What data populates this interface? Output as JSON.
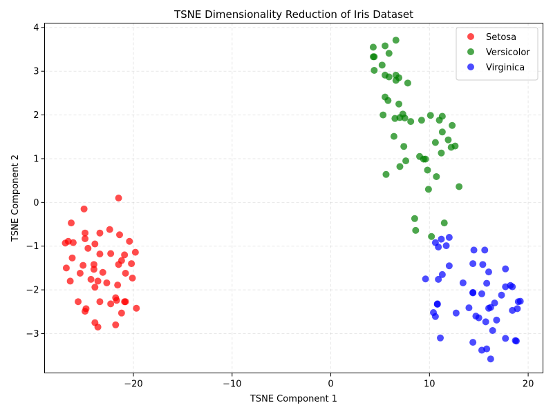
{
  "chart_data": {
    "type": "scatter",
    "title": "TSNE Dimensionality Reduction of Iris Dataset",
    "xlabel": "TSNE Component 1",
    "ylabel": "TSNE Component 2",
    "xlim": [
      -29,
      21.5
    ],
    "ylim": [
      -3.9,
      4.1
    ],
    "xticks": [
      -20,
      -10,
      0,
      10,
      20
    ],
    "yticks": [
      -3,
      -2,
      -1,
      0,
      1,
      2,
      3,
      4
    ],
    "grid": true,
    "legend_position": "top-right",
    "series": [
      {
        "name": "Setosa",
        "color": "#ff0000",
        "points": [
          [
            -21.5,
            0.1
          ],
          [
            -25.0,
            -0.15
          ],
          [
            -26.3,
            -0.47
          ],
          [
            -24.9,
            -0.7
          ],
          [
            -23.4,
            -0.7
          ],
          [
            -22.4,
            -0.62
          ],
          [
            -21.4,
            -0.74
          ],
          [
            -20.4,
            -0.89
          ],
          [
            -26.9,
            -0.93
          ],
          [
            -26.6,
            -0.89
          ],
          [
            -26.1,
            -0.92
          ],
          [
            -24.9,
            -0.83
          ],
          [
            -23.9,
            -0.95
          ],
          [
            -24.6,
            -1.05
          ],
          [
            -23.4,
            -1.18
          ],
          [
            -22.3,
            -1.17
          ],
          [
            -20.9,
            -1.2
          ],
          [
            -19.8,
            -1.14
          ],
          [
            -26.2,
            -1.27
          ],
          [
            -25.1,
            -1.44
          ],
          [
            -26.8,
            -1.5
          ],
          [
            -24.0,
            -1.42
          ],
          [
            -21.5,
            -1.42
          ],
          [
            -21.2,
            -1.33
          ],
          [
            -20.2,
            -1.4
          ],
          [
            -24.0,
            -1.53
          ],
          [
            -23.1,
            -1.6
          ],
          [
            -20.8,
            -1.62
          ],
          [
            -25.4,
            -1.62
          ],
          [
            -26.4,
            -1.8
          ],
          [
            -24.3,
            -1.76
          ],
          [
            -23.6,
            -1.8
          ],
          [
            -22.7,
            -1.84
          ],
          [
            -21.6,
            -1.89
          ],
          [
            -20.1,
            -1.73
          ],
          [
            -23.9,
            -1.94
          ],
          [
            -25.6,
            -2.27
          ],
          [
            -23.4,
            -2.27
          ],
          [
            -22.3,
            -2.32
          ],
          [
            -21.8,
            -2.18
          ],
          [
            -21.7,
            -2.24
          ],
          [
            -20.9,
            -2.27
          ],
          [
            -20.8,
            -2.27
          ],
          [
            -19.7,
            -2.42
          ],
          [
            -24.8,
            -2.43
          ],
          [
            -24.9,
            -2.49
          ],
          [
            -21.2,
            -2.53
          ],
          [
            -23.9,
            -2.75
          ],
          [
            -23.6,
            -2.85
          ],
          [
            -21.8,
            -2.8
          ]
        ]
      },
      {
        "name": "Versicolor",
        "color": "#008000",
        "points": [
          [
            6.6,
            3.71
          ],
          [
            4.3,
            3.55
          ],
          [
            5.5,
            3.58
          ],
          [
            4.3,
            3.33
          ],
          [
            4.4,
            3.33
          ],
          [
            5.9,
            3.41
          ],
          [
            5.2,
            3.14
          ],
          [
            4.4,
            3.02
          ],
          [
            5.5,
            2.91
          ],
          [
            5.9,
            2.87
          ],
          [
            6.6,
            2.91
          ],
          [
            6.9,
            2.85
          ],
          [
            6.6,
            2.79
          ],
          [
            7.8,
            2.73
          ],
          [
            5.5,
            2.41
          ],
          [
            5.8,
            2.33
          ],
          [
            6.9,
            2.25
          ],
          [
            5.3,
            2.0
          ],
          [
            6.5,
            1.92
          ],
          [
            7.0,
            1.94
          ],
          [
            7.3,
            2.02
          ],
          [
            7.5,
            1.93
          ],
          [
            8.1,
            1.85
          ],
          [
            9.2,
            1.88
          ],
          [
            10.1,
            1.99
          ],
          [
            11.0,
            1.88
          ],
          [
            11.3,
            1.97
          ],
          [
            12.3,
            1.76
          ],
          [
            11.3,
            1.61
          ],
          [
            6.4,
            1.51
          ],
          [
            11.9,
            1.43
          ],
          [
            10.6,
            1.37
          ],
          [
            7.4,
            1.28
          ],
          [
            12.2,
            1.26
          ],
          [
            12.6,
            1.29
          ],
          [
            11.2,
            1.13
          ],
          [
            9.0,
            1.05
          ],
          [
            9.4,
            0.99
          ],
          [
            9.6,
            0.99
          ],
          [
            7.6,
            0.95
          ],
          [
            7.0,
            0.82
          ],
          [
            9.8,
            0.74
          ],
          [
            10.7,
            0.59
          ],
          [
            5.6,
            0.64
          ],
          [
            9.9,
            0.3
          ],
          [
            13.0,
            0.36
          ],
          [
            8.5,
            -0.37
          ],
          [
            11.5,
            -0.47
          ],
          [
            8.6,
            -0.64
          ],
          [
            10.2,
            -0.78
          ]
        ]
      },
      {
        "name": "Virginica",
        "color": "#0000ff",
        "points": [
          [
            11.2,
            -0.84
          ],
          [
            12.0,
            -0.8
          ],
          [
            10.6,
            -0.92
          ],
          [
            10.9,
            -1.02
          ],
          [
            11.7,
            -0.99
          ],
          [
            14.5,
            -1.09
          ],
          [
            15.6,
            -1.09
          ],
          [
            12.0,
            -1.45
          ],
          [
            14.4,
            -1.4
          ],
          [
            15.4,
            -1.42
          ],
          [
            16.0,
            -1.59
          ],
          [
            17.7,
            -1.52
          ],
          [
            11.3,
            -1.65
          ],
          [
            9.6,
            -1.75
          ],
          [
            10.9,
            -1.76
          ],
          [
            13.4,
            -1.84
          ],
          [
            15.8,
            -1.85
          ],
          [
            17.7,
            -1.93
          ],
          [
            18.2,
            -1.9
          ],
          [
            18.4,
            -1.93
          ],
          [
            14.4,
            -2.06
          ],
          [
            14.4,
            -2.07
          ],
          [
            15.3,
            -2.09
          ],
          [
            17.3,
            -2.12
          ],
          [
            16.6,
            -2.3
          ],
          [
            19.2,
            -2.26
          ],
          [
            19.0,
            -2.27
          ],
          [
            10.8,
            -2.32
          ],
          [
            10.8,
            -2.33
          ],
          [
            14.0,
            -2.41
          ],
          [
            16.0,
            -2.42
          ],
          [
            16.2,
            -2.4
          ],
          [
            18.4,
            -2.47
          ],
          [
            18.9,
            -2.43
          ],
          [
            10.4,
            -2.52
          ],
          [
            10.6,
            -2.61
          ],
          [
            12.7,
            -2.53
          ],
          [
            14.7,
            -2.6
          ],
          [
            15.0,
            -2.64
          ],
          [
            15.7,
            -2.73
          ],
          [
            16.8,
            -2.69
          ],
          [
            16.4,
            -2.93
          ],
          [
            11.1,
            -3.1
          ],
          [
            17.7,
            -3.11
          ],
          [
            18.7,
            -3.16
          ],
          [
            18.8,
            -3.17
          ],
          [
            14.4,
            -3.2
          ],
          [
            15.3,
            -3.38
          ],
          [
            15.8,
            -3.35
          ],
          [
            16.2,
            -3.58
          ]
        ]
      }
    ]
  }
}
